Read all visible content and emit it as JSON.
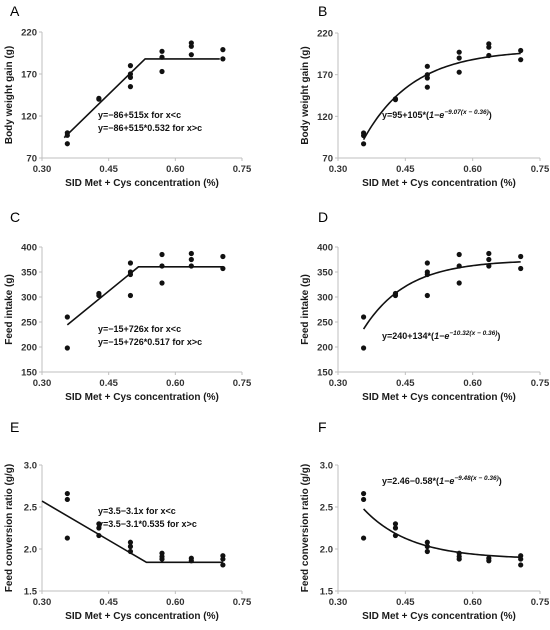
{
  "chart_data": [
    {
      "panel": "A",
      "type": "scatter",
      "xlabel": "SID Met + Cys concentration (%)",
      "ylabel": "Body weight gain (g)",
      "xlim": [
        0.3,
        0.75
      ],
      "ylim": [
        70,
        220
      ],
      "xticks": [
        "0.30",
        "0.45",
        "0.60",
        "0.75"
      ],
      "yticks": [
        "70",
        "120",
        "170",
        "220"
      ],
      "equation_lines": [
        "y=−86+515x for x<c",
        "y=−86+515*0.532 for x>c"
      ],
      "fit": {
        "kind": "linear-plateau",
        "a": -86,
        "b": 515,
        "c": 0.532,
        "x_from": 0.35,
        "x_to": 0.7
      },
      "points": [
        [
          0.357,
          100
        ],
        [
          0.357,
          97
        ],
        [
          0.357,
          87
        ],
        [
          0.428,
          141
        ],
        [
          0.428,
          140
        ],
        [
          0.499,
          180
        ],
        [
          0.499,
          170
        ],
        [
          0.499,
          166
        ],
        [
          0.499,
          155
        ],
        [
          0.57,
          197
        ],
        [
          0.57,
          190
        ],
        [
          0.57,
          173
        ],
        [
          0.636,
          207
        ],
        [
          0.636,
          203
        ],
        [
          0.636,
          193
        ],
        [
          0.707,
          199
        ],
        [
          0.707,
          188
        ]
      ]
    },
    {
      "panel": "B",
      "type": "scatter",
      "xlabel": "SID Met + Cys concentration (%)",
      "ylabel": "Body weight gain (g)",
      "xlim": [
        0.3,
        0.75
      ],
      "ylim": [
        70,
        220
      ],
      "xticks": [
        "0.30",
        "0.45",
        "0.60",
        "0.75"
      ],
      "yticks": [
        "70",
        "120",
        "170",
        "220"
      ],
      "equation_main": "y=95+105*(",
      "equation_italic": "1−e",
      "equation_sup": "−9.07(x − 0.36)",
      "equation_close": ")",
      "fit": {
        "kind": "exponential",
        "a": 95,
        "b": 105,
        "k": 9.07,
        "x0": 0.36,
        "x_from": 0.357,
        "x_to": 0.707
      },
      "points": [
        [
          0.357,
          100
        ],
        [
          0.357,
          97
        ],
        [
          0.357,
          87
        ],
        [
          0.428,
          141
        ],
        [
          0.428,
          140
        ],
        [
          0.499,
          180
        ],
        [
          0.499,
          170
        ],
        [
          0.499,
          166
        ],
        [
          0.499,
          155
        ],
        [
          0.57,
          197
        ],
        [
          0.57,
          190
        ],
        [
          0.57,
          173
        ],
        [
          0.636,
          207
        ],
        [
          0.636,
          203
        ],
        [
          0.636,
          193
        ],
        [
          0.707,
          199
        ],
        [
          0.707,
          188
        ]
      ]
    },
    {
      "panel": "C",
      "type": "scatter",
      "xlabel": "SID Met + Cys concentration (%)",
      "ylabel": "Feed intake (g)",
      "xlim": [
        0.3,
        0.75
      ],
      "ylim": [
        150,
        400
      ],
      "xticks": [
        "0.30",
        "0.45",
        "0.60",
        "0.75"
      ],
      "yticks": [
        "150",
        "200",
        "250",
        "300",
        "350",
        "400"
      ],
      "equation_lines": [
        "y=−15+726x for x<c",
        "y=−15+726*0.517 for x>c"
      ],
      "fit": {
        "kind": "linear-plateau",
        "a": -15,
        "b": 726,
        "c": 0.517,
        "x_from": 0.357,
        "x_to": 0.707
      },
      "points": [
        [
          0.357,
          260
        ],
        [
          0.357,
          198
        ],
        [
          0.428,
          307
        ],
        [
          0.428,
          303
        ],
        [
          0.499,
          368
        ],
        [
          0.499,
          350
        ],
        [
          0.499,
          345
        ],
        [
          0.499,
          303
        ],
        [
          0.57,
          385
        ],
        [
          0.57,
          362
        ],
        [
          0.57,
          328
        ],
        [
          0.636,
          387
        ],
        [
          0.636,
          375
        ],
        [
          0.636,
          362
        ],
        [
          0.707,
          381
        ],
        [
          0.707,
          357
        ]
      ]
    },
    {
      "panel": "D",
      "type": "scatter",
      "xlabel": "SID Met + Cys concentration (%)",
      "ylabel": "Feed intake (g)",
      "xlim": [
        0.3,
        0.75
      ],
      "ylim": [
        150,
        400
      ],
      "xticks": [
        "0.30",
        "0.45",
        "0.60",
        "0.75"
      ],
      "yticks": [
        "150",
        "200",
        "250",
        "300",
        "350",
        "400"
      ],
      "equation_main": "y=240+134*(",
      "equation_italic": "1−e",
      "equation_sup": "−10.32(x − 0.36)",
      "equation_close": ")",
      "fit": {
        "kind": "exponential",
        "a": 240,
        "b": 134,
        "k": 10.32,
        "x0": 0.36,
        "x_from": 0.357,
        "x_to": 0.707
      },
      "points": [
        [
          0.357,
          260
        ],
        [
          0.357,
          198
        ],
        [
          0.428,
          307
        ],
        [
          0.428,
          303
        ],
        [
          0.499,
          368
        ],
        [
          0.499,
          350
        ],
        [
          0.499,
          345
        ],
        [
          0.499,
          303
        ],
        [
          0.57,
          385
        ],
        [
          0.57,
          362
        ],
        [
          0.57,
          328
        ],
        [
          0.636,
          387
        ],
        [
          0.636,
          375
        ],
        [
          0.636,
          362
        ],
        [
          0.707,
          381
        ],
        [
          0.707,
          357
        ]
      ]
    },
    {
      "panel": "E",
      "type": "scatter",
      "xlabel": "SID Met + Cys concentration (%)",
      "ylabel": "Feed conversion ratio (g/g)",
      "xlim": [
        0.3,
        0.75
      ],
      "ylim": [
        1.5,
        3.0
      ],
      "xticks": [
        "0.30",
        "0.45",
        "0.60",
        "0.75"
      ],
      "yticks": [
        "1.5",
        "2.0",
        "2.5",
        "3.0"
      ],
      "equation_lines": [
        "y=3.5−3.1x for x<c",
        "y=3.5−3.1*0.535 for x>c"
      ],
      "fit": {
        "kind": "linear-plateau",
        "a": 3.5,
        "b": -3.1,
        "c": 0.535,
        "x_from": 0.3,
        "x_to": 0.707
      },
      "points": [
        [
          0.357,
          2.66
        ],
        [
          0.357,
          2.59
        ],
        [
          0.357,
          2.13
        ],
        [
          0.428,
          2.3
        ],
        [
          0.428,
          2.25
        ],
        [
          0.428,
          2.16
        ],
        [
          0.499,
          2.08
        ],
        [
          0.499,
          2.03
        ],
        [
          0.499,
          1.97
        ],
        [
          0.57,
          1.95
        ],
        [
          0.57,
          1.91
        ],
        [
          0.57,
          1.88
        ],
        [
          0.636,
          1.89
        ],
        [
          0.636,
          1.86
        ],
        [
          0.707,
          1.92
        ],
        [
          0.707,
          1.88
        ],
        [
          0.707,
          1.81
        ]
      ]
    },
    {
      "panel": "F",
      "type": "scatter",
      "xlabel": "SID Met + Cys concentration (%)",
      "ylabel": "Feed conversion ratio (g/g)",
      "xlim": [
        0.3,
        0.75
      ],
      "ylim": [
        1.5,
        3.0
      ],
      "xticks": [
        "0.30",
        "0.45",
        "0.60",
        "0.75"
      ],
      "yticks": [
        "1.5",
        "2.0",
        "2.5",
        "3.0"
      ],
      "equation_main": "y=2.46−0.58*(",
      "equation_italic": "1−e",
      "equation_sup": "−9.48(x − 0.36)",
      "equation_close": ")",
      "fit": {
        "kind": "exponential",
        "a": 2.46,
        "b": -0.58,
        "k": 9.48,
        "x0": 0.36,
        "x_from": 0.357,
        "x_to": 0.707
      },
      "points": [
        [
          0.357,
          2.66
        ],
        [
          0.357,
          2.59
        ],
        [
          0.357,
          2.13
        ],
        [
          0.428,
          2.3
        ],
        [
          0.428,
          2.25
        ],
        [
          0.428,
          2.16
        ],
        [
          0.499,
          2.08
        ],
        [
          0.499,
          2.03
        ],
        [
          0.499,
          1.97
        ],
        [
          0.57,
          1.95
        ],
        [
          0.57,
          1.91
        ],
        [
          0.57,
          1.88
        ],
        [
          0.636,
          1.89
        ],
        [
          0.636,
          1.86
        ],
        [
          0.707,
          1.92
        ],
        [
          0.707,
          1.88
        ],
        [
          0.707,
          1.81
        ]
      ]
    }
  ]
}
